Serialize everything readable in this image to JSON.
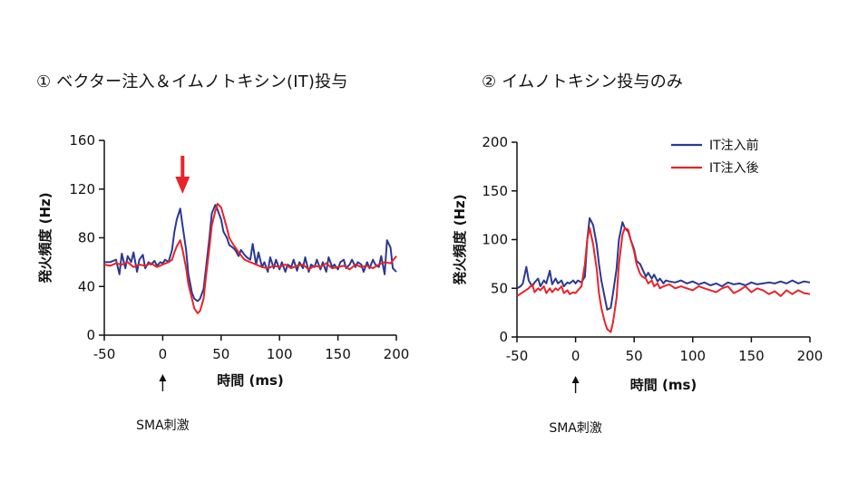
{
  "chart_data": [
    {
      "type": "line",
      "title": "① ベクター注入＆イムノトキシン(IT)投与",
      "xlabel": "時間 (ms)",
      "ylabel": "発火頻度 (Hz)",
      "xlim": [
        -50,
        200
      ],
      "ylim": [
        0,
        160
      ],
      "xticks": [
        -50,
        0,
        50,
        100,
        150,
        200
      ],
      "yticks": [
        0,
        40,
        80,
        120,
        160
      ],
      "annotation": {
        "text": "SMA刺激",
        "x": 0
      },
      "highlight_arrow_x": 17,
      "grid": false,
      "series": [
        {
          "color": "#2b3990",
          "x": [
            -50,
            -45,
            -40,
            -37,
            -35,
            -32,
            -30,
            -27,
            -25,
            -22,
            -20,
            -17,
            -15,
            -12,
            -10,
            -7,
            -5,
            -2,
            0,
            2,
            5,
            8,
            10,
            12,
            15,
            17,
            20,
            22,
            25,
            27,
            30,
            32,
            35,
            37,
            40,
            42,
            45,
            47,
            50,
            52,
            55,
            57,
            60,
            62,
            65,
            67,
            70,
            72,
            75,
            77,
            80,
            82,
            85,
            87,
            90,
            92,
            95,
            97,
            100,
            102,
            105,
            107,
            110,
            112,
            115,
            117,
            120,
            122,
            125,
            127,
            130,
            132,
            135,
            137,
            140,
            142,
            145,
            147,
            150,
            152,
            155,
            157,
            160,
            162,
            165,
            167,
            170,
            172,
            175,
            177,
            180,
            182,
            185,
            187,
            190,
            192,
            195,
            197,
            200
          ],
          "values": [
            60,
            60,
            62,
            50,
            67,
            55,
            65,
            60,
            68,
            52,
            62,
            66,
            55,
            60,
            58,
            61,
            57,
            60,
            59,
            62,
            60,
            70,
            85,
            95,
            104,
            90,
            70,
            50,
            35,
            30,
            28,
            30,
            38,
            55,
            80,
            100,
            107,
            103,
            95,
            85,
            80,
            74,
            72,
            70,
            65,
            70,
            66,
            64,
            62,
            75,
            58,
            68,
            56,
            60,
            52,
            64,
            55,
            62,
            54,
            60,
            52,
            58,
            56,
            62,
            53,
            60,
            55,
            64,
            52,
            58,
            56,
            62,
            54,
            60,
            52,
            64,
            56,
            58,
            54,
            60,
            62,
            55,
            58,
            62,
            56,
            60,
            58,
            52,
            60,
            55,
            62,
            58,
            56,
            65,
            50,
            78,
            72,
            55,
            52
          ]
        },
        {
          "color": "#e8232a",
          "x": [
            -50,
            -45,
            -40,
            -35,
            -30,
            -25,
            -20,
            -15,
            -10,
            -5,
            0,
            5,
            8,
            10,
            12,
            15,
            17,
            20,
            22,
            25,
            27,
            30,
            32,
            35,
            37,
            40,
            42,
            45,
            47,
            50,
            52,
            55,
            57,
            60,
            65,
            70,
            75,
            80,
            85,
            90,
            95,
            100,
            105,
            110,
            115,
            120,
            125,
            130,
            135,
            140,
            145,
            150,
            155,
            160,
            165,
            170,
            175,
            180,
            185,
            190,
            195,
            200
          ],
          "values": [
            58,
            57,
            59,
            58,
            60,
            56,
            58,
            57,
            59,
            56,
            58,
            60,
            62,
            68,
            73,
            78,
            70,
            55,
            42,
            30,
            22,
            18,
            20,
            30,
            48,
            72,
            90,
            102,
            108,
            105,
            98,
            88,
            80,
            75,
            68,
            62,
            60,
            58,
            56,
            55,
            57,
            56,
            58,
            55,
            57,
            58,
            54,
            57,
            56,
            59,
            55,
            56,
            57,
            54,
            58,
            56,
            57,
            55,
            58,
            60,
            59,
            65
          ]
        }
      ]
    },
    {
      "type": "line",
      "title": "② イムノトキシン投与のみ",
      "xlabel": "時間 (ms)",
      "ylabel": "発火頻度 (Hz)",
      "xlim": [
        -50,
        200
      ],
      "ylim": [
        0,
        200
      ],
      "xticks": [
        -50,
        0,
        50,
        100,
        150,
        200
      ],
      "yticks": [
        0,
        50,
        100,
        150,
        200
      ],
      "annotation": {
        "text": "SMA刺激",
        "x": 0
      },
      "legend_position": "top-right",
      "grid": false,
      "series": [
        {
          "name": "IT注入前",
          "color": "#2b3990",
          "x": [
            -50,
            -47,
            -45,
            -42,
            -40,
            -37,
            -35,
            -32,
            -30,
            -27,
            -25,
            -22,
            -20,
            -17,
            -15,
            -12,
            -10,
            -7,
            -5,
            -2,
            0,
            2,
            5,
            8,
            10,
            12,
            15,
            18,
            20,
            22,
            25,
            27,
            30,
            32,
            35,
            37,
            40,
            42,
            45,
            47,
            50,
            52,
            55,
            57,
            60,
            62,
            65,
            67,
            70,
            72,
            75,
            77,
            80,
            85,
            90,
            95,
            100,
            105,
            110,
            115,
            120,
            125,
            130,
            135,
            140,
            145,
            150,
            155,
            160,
            165,
            170,
            175,
            180,
            185,
            190,
            195,
            200
          ],
          "values": [
            50,
            52,
            55,
            72,
            58,
            52,
            56,
            60,
            52,
            58,
            55,
            68,
            54,
            60,
            55,
            58,
            52,
            56,
            55,
            58,
            55,
            58,
            56,
            62,
            100,
            122,
            115,
            95,
            75,
            58,
            40,
            28,
            30,
            45,
            70,
            100,
            118,
            112,
            108,
            100,
            90,
            78,
            75,
            70,
            62,
            66,
            60,
            64,
            57,
            60,
            55,
            58,
            57,
            56,
            58,
            55,
            57,
            54,
            56,
            53,
            55,
            52,
            56,
            54,
            55,
            53,
            56,
            54,
            55,
            56,
            55,
            57,
            55,
            58,
            55,
            57,
            56
          ]
        },
        {
          "name": "IT注入後",
          "color": "#e8232a",
          "x": [
            -50,
            -45,
            -40,
            -37,
            -35,
            -32,
            -30,
            -27,
            -25,
            -22,
            -20,
            -17,
            -15,
            -12,
            -10,
            -7,
            -5,
            -2,
            0,
            2,
            5,
            8,
            10,
            12,
            15,
            18,
            20,
            22,
            25,
            27,
            30,
            32,
            35,
            37,
            40,
            42,
            45,
            47,
            50,
            52,
            55,
            57,
            60,
            62,
            65,
            67,
            70,
            72,
            75,
            80,
            85,
            90,
            95,
            100,
            105,
            110,
            115,
            120,
            125,
            130,
            135,
            140,
            145,
            150,
            155,
            160,
            165,
            170,
            175,
            180,
            185,
            190,
            195,
            200
          ],
          "values": [
            42,
            46,
            50,
            54,
            46,
            50,
            48,
            52,
            45,
            50,
            46,
            50,
            48,
            52,
            45,
            48,
            44,
            46,
            45,
            48,
            52,
            75,
            100,
            112,
            95,
            70,
            45,
            30,
            15,
            8,
            5,
            15,
            40,
            75,
            105,
            112,
            110,
            100,
            88,
            75,
            65,
            62,
            60,
            55,
            58,
            52,
            55,
            50,
            52,
            54,
            50,
            52,
            50,
            48,
            52,
            50,
            48,
            46,
            50,
            52,
            45,
            48,
            52,
            46,
            50,
            48,
            44,
            47,
            42,
            48,
            44,
            48,
            45,
            44
          ]
        }
      ]
    }
  ]
}
